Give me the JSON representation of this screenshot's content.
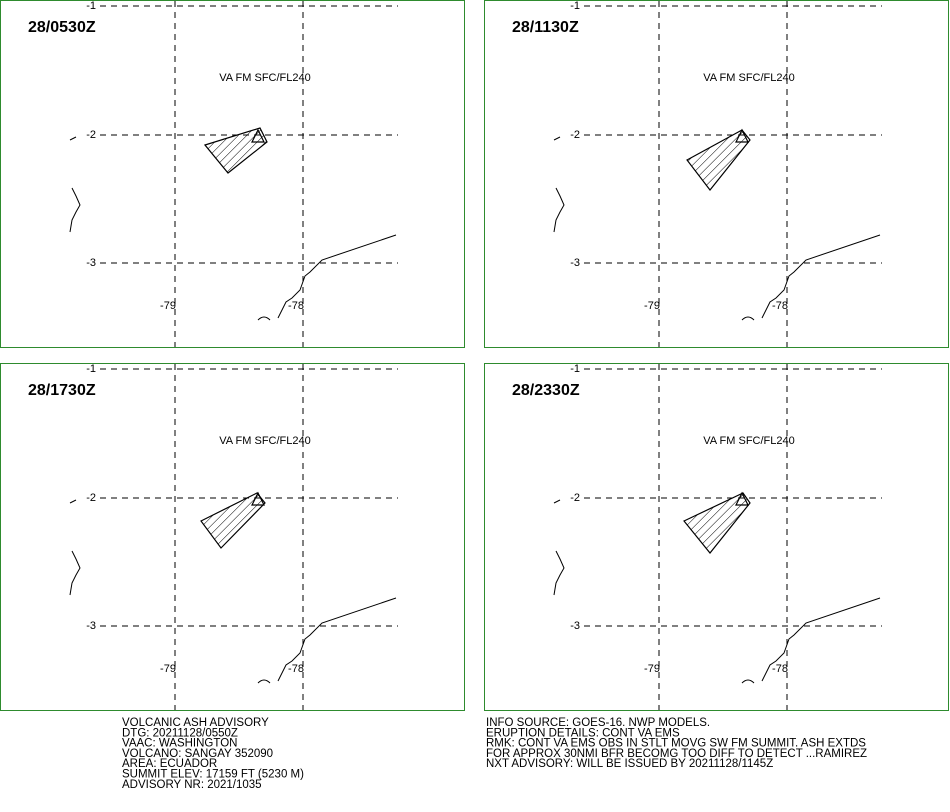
{
  "panels": [
    {
      "time": "28/0530Z",
      "level": "VA FM SFC/FL240"
    },
    {
      "time": "28/1130Z",
      "level": "VA FM SFC/FL240"
    },
    {
      "time": "28/1730Z",
      "level": "VA FM SFC/FL240"
    },
    {
      "time": "28/2330Z",
      "level": "VA FM SFC/FL240"
    }
  ],
  "grid_labels": {
    "lat": [
      "-1",
      "-2",
      "-3"
    ],
    "lon": [
      "-79",
      "-78"
    ]
  },
  "advisory_left": [
    "VOLCANIC ASH ADVISORY",
    "DTG: 20211128/0550Z",
    "VAAC: WASHINGTON",
    "VOLCANO: SANGAY 352090",
    "AREA: ECUADOR",
    "SUMMIT ELEV: 17159 FT (5230 M)",
    "ADVISORY NR: 2021/1035"
  ],
  "advisory_right": [
    "INFO SOURCE: GOES-16. NWP MODELS.",
    "ERUPTION DETAILS: CONT VA EMS",
    "RMK: CONT VA EMS OBS IN STLT MOVG SW FM SUMMIT. ASH EXTDS",
    "FOR APPROX 30NMI BFR BECOMG TOO DIFF TO DETECT ...RAMIREZ",
    "NXT ADVISORY: WILL BE ISSUED BY 20211128/1145Z"
  ]
}
